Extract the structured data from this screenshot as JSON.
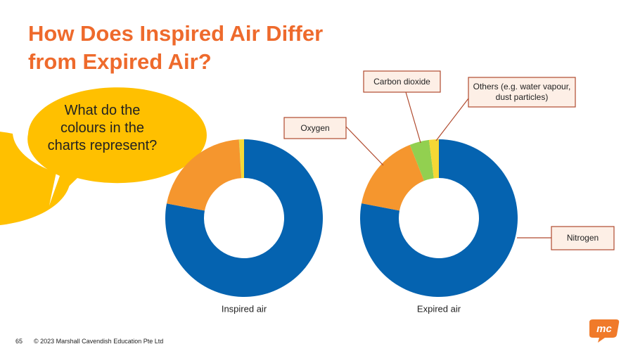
{
  "title": "How Does Inspired Air Differ from Expired Air?",
  "bubble": "What do the colours in the charts represent?",
  "footer": {
    "page": "65",
    "copyright": "© 2023 Marshall Cavendish Education Pte Ltd",
    "logo": "mc"
  },
  "chart_data": {
    "type": "donut",
    "categories": [
      "Nitrogen",
      "Oxygen",
      "Carbon dioxide",
      "Others (e.g. water vapour, dust particles)"
    ],
    "colors": [
      "#0563b0",
      "#f5962e",
      "#92d050",
      "#f5d835"
    ],
    "series": [
      {
        "name": "Inspired air",
        "values": [
          78,
          21,
          0.04,
          1
        ]
      },
      {
        "name": "Expired air",
        "values": [
          78,
          16,
          4,
          2
        ]
      }
    ]
  }
}
